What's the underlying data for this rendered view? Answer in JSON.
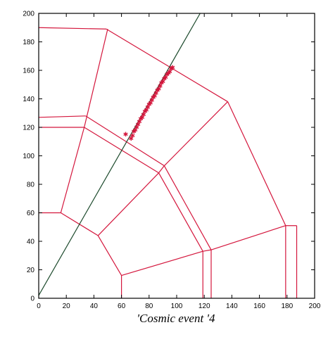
{
  "chart_data": {
    "type": "line",
    "title": "",
    "xlabel": "'Cosmic event '4",
    "ylabel": "",
    "xlim": [
      0,
      200
    ],
    "ylim": [
      0,
      200
    ],
    "x_ticks": [
      0,
      20,
      40,
      60,
      80,
      100,
      120,
      140,
      160,
      180,
      200
    ],
    "y_ticks": [
      0,
      20,
      40,
      60,
      80,
      100,
      120,
      140,
      160,
      180,
      200
    ],
    "grid": false,
    "legend": "none",
    "colors": {
      "detector": "#d4163c",
      "track": "#1c4a2c",
      "hits": "#d4163c",
      "axis": "#000000"
    },
    "detector_segments": [
      [
        [
          0,
          190
        ],
        [
          49,
          189
        ]
      ],
      [
        [
          49,
          189
        ],
        [
          137,
          138
        ]
      ],
      [
        [
          137,
          138
        ],
        [
          179,
          51
        ]
      ],
      [
        [
          179,
          51
        ],
        [
          187,
          51
        ]
      ],
      [
        [
          187,
          51
        ],
        [
          187,
          0
        ]
      ],
      [
        [
          179,
          51
        ],
        [
          179,
          0
        ]
      ],
      [
        [
          179,
          51
        ],
        [
          125,
          34
        ]
      ],
      [
        [
          125,
          34
        ],
        [
          125,
          0
        ]
      ],
      [
        [
          125,
          34
        ],
        [
          119,
          33
        ]
      ],
      [
        [
          119,
          33
        ],
        [
          119,
          0
        ]
      ],
      [
        [
          119,
          33
        ],
        [
          60,
          16
        ]
      ],
      [
        [
          60,
          16
        ],
        [
          60,
          0
        ]
      ],
      [
        [
          60,
          16
        ],
        [
          43,
          44
        ]
      ],
      [
        [
          43,
          44
        ],
        [
          16,
          60
        ]
      ],
      [
        [
          16,
          60
        ],
        [
          0,
          60
        ]
      ],
      [
        [
          16,
          60
        ],
        [
          33,
          120
        ]
      ],
      [
        [
          33,
          120
        ],
        [
          0,
          120
        ]
      ],
      [
        [
          33,
          120
        ],
        [
          50,
          189
        ]
      ],
      [
        [
          0,
          127
        ],
        [
          34,
          128
        ]
      ],
      [
        [
          34,
          128
        ],
        [
          91,
          93
        ]
      ],
      [
        [
          33,
          120
        ],
        [
          87,
          88
        ]
      ],
      [
        [
          87,
          88
        ],
        [
          91,
          93
        ]
      ],
      [
        [
          91,
          93
        ],
        [
          137,
          138
        ]
      ],
      [
        [
          43,
          44
        ],
        [
          87,
          88
        ]
      ],
      [
        [
          87,
          88
        ],
        [
          119,
          33
        ]
      ],
      [
        [
          91,
          93
        ],
        [
          125,
          34
        ]
      ]
    ],
    "series": [
      {
        "type": "line",
        "x": [
          0,
          117
        ],
        "y": [
          2,
          200
        ]
      },
      {
        "type": "scatter",
        "x": [
          63,
          67,
          68,
          69,
          70,
          71,
          72,
          73,
          74,
          75,
          76,
          77,
          78,
          79,
          80,
          81,
          82,
          83,
          84,
          85,
          86,
          87,
          88,
          89,
          90,
          91,
          92,
          93,
          94,
          95,
          96,
          97
        ],
        "y": [
          115,
          112,
          114,
          117,
          118,
          120,
          122,
          124,
          126,
          127,
          129,
          131,
          132,
          134,
          136,
          137,
          139,
          141,
          142,
          144,
          146,
          147,
          149,
          151,
          152,
          154,
          155,
          157,
          158,
          159,
          161,
          162
        ]
      }
    ]
  }
}
